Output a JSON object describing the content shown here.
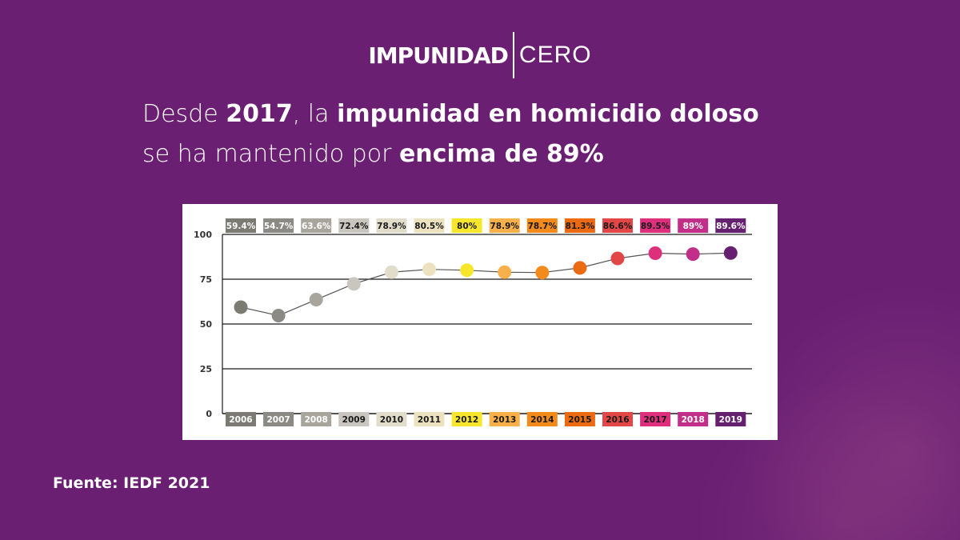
{
  "logo": {
    "left": "IMPUNIDAD",
    "right": "CERO"
  },
  "headline": {
    "line1": [
      {
        "text": "Desde ",
        "bold": false
      },
      {
        "text": "2017",
        "bold": true
      },
      {
        "text": ", la ",
        "bold": false
      },
      {
        "text": "impunidad en homicidio doloso",
        "bold": true
      }
    ],
    "line2": [
      {
        "text": "se ha mantenido por ",
        "bold": false
      },
      {
        "text": "encima de 89%",
        "bold": true
      }
    ]
  },
  "source": "Fuente: IEDF 2021",
  "colors": {
    "background": "#6a1f73",
    "gridline": "#1a1a1a",
    "line": "#555555"
  },
  "chart_data": {
    "type": "line",
    "x": [
      "2006",
      "2007",
      "2008",
      "2009",
      "2010",
      "2011",
      "2012",
      "2013",
      "2014",
      "2015",
      "2016",
      "2017",
      "2018",
      "2019"
    ],
    "values": [
      59.4,
      54.7,
      63.6,
      72.4,
      78.9,
      80.5,
      80,
      78.9,
      78.7,
      81.3,
      86.6,
      89.5,
      89,
      89.6
    ],
    "value_labels": [
      "59.4%",
      "54.7%",
      "63.6%",
      "72.4%",
      "78.9%",
      "80.5%",
      "80%",
      "78.9%",
      "78.7%",
      "81.3%",
      "86.6%",
      "89.5%",
      "89%",
      "89.6%"
    ],
    "point_colors": [
      "#7b7b73",
      "#8c8a84",
      "#a8a59d",
      "#c8c6bf",
      "#e2dccb",
      "#ece2bf",
      "#f7e62c",
      "#f7b04a",
      "#f28a1c",
      "#ec6a12",
      "#e24646",
      "#de2f7c",
      "#c22f88",
      "#65206f"
    ],
    "label_text_colors": [
      "#ffffff",
      "#ffffff",
      "#ffffff",
      "#1a1a1a",
      "#1a1a1a",
      "#1a1a1a",
      "#1a1a1a",
      "#1a1a1a",
      "#1a1a1a",
      "#1a1a1a",
      "#1a1a1a",
      "#1a1a1a",
      "#ffffff",
      "#ffffff"
    ],
    "y_ticks": [
      "100",
      "75",
      "50",
      "25",
      "0"
    ],
    "ylim": [
      0,
      100
    ],
    "grid": true,
    "title": "",
    "xlabel": "",
    "ylabel": ""
  }
}
